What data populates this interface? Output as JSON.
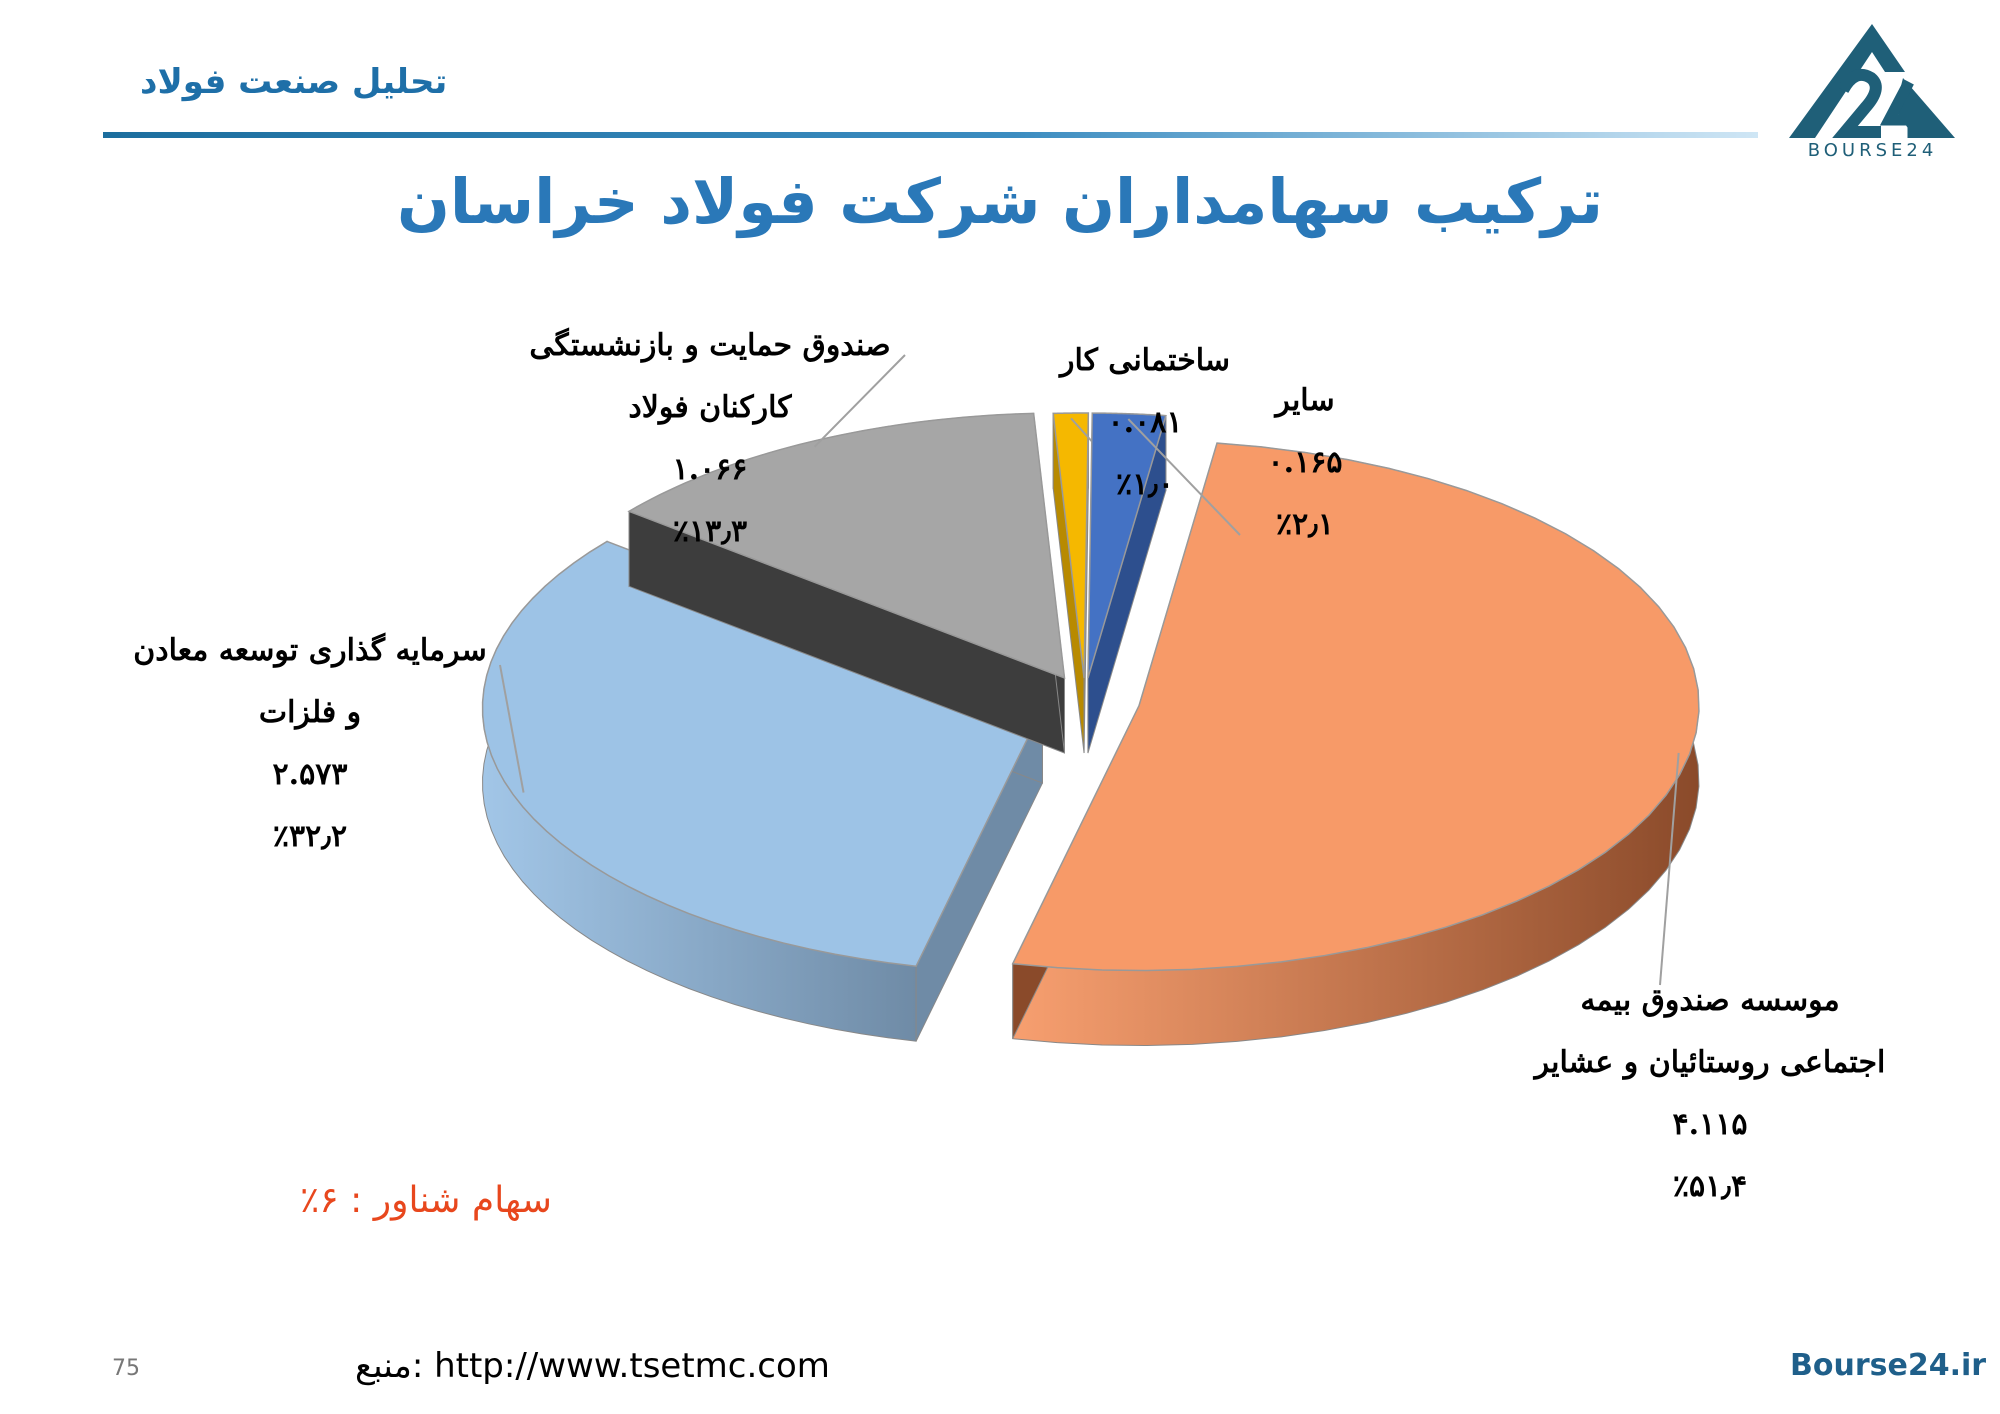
{
  "header": {
    "section_title": "تحلیل صنعت فولاد",
    "logo_text": "BOURSE24"
  },
  "colors": {
    "accent": "#2a78b8",
    "float_note": "#e8471d"
  },
  "chart_data": {
    "type": "pie",
    "title": "ترکیب سهامداران شرکت فولاد خراسان",
    "slices": [
      {
        "label": "موسسه صندوق بیمه اجتماعی روستائیان و عشایر",
        "label_lines": [
          "موسسه صندوق بیمه",
          "اجتماعی روستائیان و عشایر"
        ],
        "value_text": "۴.۱۱۵",
        "value": 4.115,
        "percent_text": "٪۵۱٫۴",
        "percent": 51.4,
        "color": "#f79a68",
        "side_color": "#8a4a2a"
      },
      {
        "label": "سرمایه گذاری توسعه معادن و فلزات",
        "label_lines": [
          "سرمایه گذاری توسعه معادن",
          "و فلزات"
        ],
        "value_text": "۲.۵۷۳",
        "value": 2.573,
        "percent_text": "٪۳۲٫۲",
        "percent": 32.2,
        "color": "#9dc3e6",
        "side_color": "#6f8ba6"
      },
      {
        "label": "صندوق حمایت و بازنشستگی کارکنان فولاد",
        "label_lines": [
          "صندوق حمایت و بازنشستگی",
          "کارکنان فولاد"
        ],
        "value_text": "۱.۰۶۶",
        "value": 1.066,
        "percent_text": "٪۱۳٫۳",
        "percent": 13.3,
        "color": "#a6a6a6",
        "side_color": "#3d3d3d"
      },
      {
        "label": "ساختمانی کار",
        "label_lines": [
          "ساختمانی کار"
        ],
        "value_text": "۰.۰۸۱",
        "value": 0.081,
        "percent_text": "٪۱٫۰",
        "percent": 1.0,
        "color": "#f5b800",
        "side_color": "#b88a00"
      },
      {
        "label": "سایر",
        "label_lines": [
          "سایر"
        ],
        "value_text": "۰.۱۶۵",
        "value": 0.165,
        "percent_text": "٪۲٫۱",
        "percent": 2.1,
        "color": "#4472c4",
        "side_color": "#2d4f8e"
      }
    ]
  },
  "float_note": "سهام شناور : ۶٪",
  "footer": {
    "page_number": "75",
    "source": "منبع: http://www.tsetmc.com",
    "site": "Bourse24.ir"
  }
}
